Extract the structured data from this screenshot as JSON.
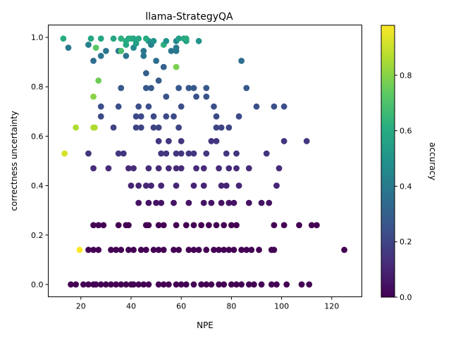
{
  "chart_data": {
    "type": "scatter",
    "title": "llama-StrategyQA",
    "xlabel": "NPE",
    "ylabel": "correctness uncertainty",
    "colorbar_label": "accuracy",
    "xlim": [
      7,
      132
    ],
    "ylim": [
      -0.05,
      1.05
    ],
    "clim": [
      0,
      0.98
    ],
    "xticks": [
      "20",
      "40",
      "60",
      "80",
      "100",
      "120"
    ],
    "yticks": [
      "0.0",
      "0.2",
      "0.4",
      "0.6",
      "0.8",
      "1.0"
    ],
    "cticks": [
      "0.0",
      "0.2",
      "0.4",
      "0.6",
      "0.8"
    ],
    "colormap": "viridis",
    "grid": false,
    "points": [
      {
        "x": 16,
        "y": 0.0,
        "c": 0.0
      },
      {
        "x": 18,
        "y": 0.0,
        "c": 0.0
      },
      {
        "x": 21,
        "y": 0.0,
        "c": 0.0
      },
      {
        "x": 23,
        "y": 0.0,
        "c": 0.0
      },
      {
        "x": 25,
        "y": 0.0,
        "c": 0.0
      },
      {
        "x": 26,
        "y": 0.0,
        "c": 0.0
      },
      {
        "x": 28,
        "y": 0.0,
        "c": 0.0
      },
      {
        "x": 30,
        "y": 0.0,
        "c": 0.0
      },
      {
        "x": 32,
        "y": 0.0,
        "c": 0.0
      },
      {
        "x": 34,
        "y": 0.0,
        "c": 0.0
      },
      {
        "x": 36,
        "y": 0.0,
        "c": 0.0
      },
      {
        "x": 38,
        "y": 0.0,
        "c": 0.0
      },
      {
        "x": 40,
        "y": 0.0,
        "c": 0.0
      },
      {
        "x": 41,
        "y": 0.0,
        "c": 0.0
      },
      {
        "x": 43,
        "y": 0.0,
        "c": 0.0
      },
      {
        "x": 45,
        "y": 0.0,
        "c": 0.0
      },
      {
        "x": 47,
        "y": 0.0,
        "c": 0.0
      },
      {
        "x": 51,
        "y": 0.0,
        "c": 0.0
      },
      {
        "x": 53,
        "y": 0.0,
        "c": 0.0
      },
      {
        "x": 55,
        "y": 0.0,
        "c": 0.0
      },
      {
        "x": 58,
        "y": 0.0,
        "c": 0.0
      },
      {
        "x": 60,
        "y": 0.0,
        "c": 0.0
      },
      {
        "x": 62,
        "y": 0.0,
        "c": 0.0
      },
      {
        "x": 65,
        "y": 0.0,
        "c": 0.0
      },
      {
        "x": 68,
        "y": 0.0,
        "c": 0.0
      },
      {
        "x": 70,
        "y": 0.0,
        "c": 0.0
      },
      {
        "x": 72,
        "y": 0.0,
        "c": 0.0
      },
      {
        "x": 75,
        "y": 0.0,
        "c": 0.0
      },
      {
        "x": 77,
        "y": 0.0,
        "c": 0.0
      },
      {
        "x": 80,
        "y": 0.0,
        "c": 0.0
      },
      {
        "x": 82,
        "y": 0.0,
        "c": 0.0
      },
      {
        "x": 84,
        "y": 0.0,
        "c": 0.0
      },
      {
        "x": 87,
        "y": 0.0,
        "c": 0.0
      },
      {
        "x": 89,
        "y": 0.0,
        "c": 0.0
      },
      {
        "x": 92,
        "y": 0.0,
        "c": 0.0
      },
      {
        "x": 96,
        "y": 0.0,
        "c": 0.0
      },
      {
        "x": 98,
        "y": 0.0,
        "c": 0.0
      },
      {
        "x": 102,
        "y": 0.0,
        "c": 0.0
      },
      {
        "x": 108,
        "y": 0.0,
        "c": 0.0
      },
      {
        "x": 111,
        "y": 0.0,
        "c": 0.0
      },
      {
        "x": 19.5,
        "y": 0.14,
        "c": 0.98
      },
      {
        "x": 23,
        "y": 0.14,
        "c": 0.0
      },
      {
        "x": 25,
        "y": 0.14,
        "c": 0.0
      },
      {
        "x": 27,
        "y": 0.14,
        "c": 0.0
      },
      {
        "x": 32,
        "y": 0.14,
        "c": 0.0
      },
      {
        "x": 34,
        "y": 0.14,
        "c": 0.0
      },
      {
        "x": 36,
        "y": 0.14,
        "c": 0.0
      },
      {
        "x": 39,
        "y": 0.14,
        "c": 0.0
      },
      {
        "x": 41,
        "y": 0.14,
        "c": 0.0
      },
      {
        "x": 44,
        "y": 0.14,
        "c": 0.0
      },
      {
        "x": 46,
        "y": 0.14,
        "c": 0.0
      },
      {
        "x": 49,
        "y": 0.14,
        "c": 0.0
      },
      {
        "x": 51,
        "y": 0.14,
        "c": 0.0
      },
      {
        "x": 53,
        "y": 0.14,
        "c": 0.0
      },
      {
        "x": 57,
        "y": 0.14,
        "c": 0.0
      },
      {
        "x": 59,
        "y": 0.14,
        "c": 0.0
      },
      {
        "x": 63,
        "y": 0.14,
        "c": 0.0
      },
      {
        "x": 65,
        "y": 0.14,
        "c": 0.0
      },
      {
        "x": 67,
        "y": 0.14,
        "c": 0.0
      },
      {
        "x": 70,
        "y": 0.14,
        "c": 0.0
      },
      {
        "x": 73,
        "y": 0.14,
        "c": 0.0
      },
      {
        "x": 75,
        "y": 0.14,
        "c": 0.0
      },
      {
        "x": 77,
        "y": 0.14,
        "c": 0.0
      },
      {
        "x": 79,
        "y": 0.14,
        "c": 0.0
      },
      {
        "x": 81,
        "y": 0.14,
        "c": 0.0
      },
      {
        "x": 84,
        "y": 0.14,
        "c": 0.0
      },
      {
        "x": 86,
        "y": 0.14,
        "c": 0.0
      },
      {
        "x": 88,
        "y": 0.14,
        "c": 0.0
      },
      {
        "x": 91,
        "y": 0.14,
        "c": 0.0
      },
      {
        "x": 96,
        "y": 0.14,
        "c": 0.0
      },
      {
        "x": 97,
        "y": 0.14,
        "c": 0.0
      },
      {
        "x": 125,
        "y": 0.14,
        "c": 0.0
      },
      {
        "x": 25,
        "y": 0.24,
        "c": 0.0
      },
      {
        "x": 27,
        "y": 0.24,
        "c": 0.0
      },
      {
        "x": 29,
        "y": 0.24,
        "c": 0.0
      },
      {
        "x": 35,
        "y": 0.24,
        "c": 0.0
      },
      {
        "x": 38,
        "y": 0.24,
        "c": 0.0
      },
      {
        "x": 39,
        "y": 0.24,
        "c": 0.0
      },
      {
        "x": 46,
        "y": 0.24,
        "c": 0.0
      },
      {
        "x": 47,
        "y": 0.24,
        "c": 0.0
      },
      {
        "x": 51,
        "y": 0.24,
        "c": 0.0
      },
      {
        "x": 53,
        "y": 0.24,
        "c": 0.0
      },
      {
        "x": 58,
        "y": 0.24,
        "c": 0.0
      },
      {
        "x": 62,
        "y": 0.24,
        "c": 0.0
      },
      {
        "x": 65,
        "y": 0.24,
        "c": 0.0
      },
      {
        "x": 68,
        "y": 0.24,
        "c": 0.0
      },
      {
        "x": 71,
        "y": 0.24,
        "c": 0.0
      },
      {
        "x": 74,
        "y": 0.24,
        "c": 0.0
      },
      {
        "x": 77,
        "y": 0.24,
        "c": 0.0
      },
      {
        "x": 80,
        "y": 0.24,
        "c": 0.0
      },
      {
        "x": 82,
        "y": 0.24,
        "c": 0.0
      },
      {
        "x": 97,
        "y": 0.24,
        "c": 0.0
      },
      {
        "x": 101,
        "y": 0.24,
        "c": 0.0
      },
      {
        "x": 107,
        "y": 0.24,
        "c": 0.0
      },
      {
        "x": 112,
        "y": 0.24,
        "c": 0.0
      },
      {
        "x": 114,
        "y": 0.24,
        "c": 0.0
      },
      {
        "x": 43,
        "y": 0.33,
        "c": 0.05
      },
      {
        "x": 47,
        "y": 0.33,
        "c": 0.05
      },
      {
        "x": 50,
        "y": 0.33,
        "c": 0.05
      },
      {
        "x": 52,
        "y": 0.33,
        "c": 0.05
      },
      {
        "x": 57,
        "y": 0.33,
        "c": 0.05
      },
      {
        "x": 63,
        "y": 0.33,
        "c": 0.05
      },
      {
        "x": 69,
        "y": 0.33,
        "c": 0.05
      },
      {
        "x": 72,
        "y": 0.33,
        "c": 0.05
      },
      {
        "x": 76,
        "y": 0.33,
        "c": 0.05
      },
      {
        "x": 79,
        "y": 0.33,
        "c": 0.05
      },
      {
        "x": 81,
        "y": 0.33,
        "c": 0.05
      },
      {
        "x": 87,
        "y": 0.33,
        "c": 0.05
      },
      {
        "x": 92,
        "y": 0.33,
        "c": 0.05
      },
      {
        "x": 95,
        "y": 0.33,
        "c": 0.05
      },
      {
        "x": 40,
        "y": 0.4,
        "c": 0.1
      },
      {
        "x": 43,
        "y": 0.4,
        "c": 0.1
      },
      {
        "x": 46,
        "y": 0.4,
        "c": 0.1
      },
      {
        "x": 48,
        "y": 0.4,
        "c": 0.1
      },
      {
        "x": 52,
        "y": 0.4,
        "c": 0.1
      },
      {
        "x": 58,
        "y": 0.4,
        "c": 0.1
      },
      {
        "x": 65,
        "y": 0.4,
        "c": 0.1
      },
      {
        "x": 69,
        "y": 0.4,
        "c": 0.1
      },
      {
        "x": 76,
        "y": 0.4,
        "c": 0.1
      },
      {
        "x": 78,
        "y": 0.4,
        "c": 0.1
      },
      {
        "x": 83,
        "y": 0.4,
        "c": 0.1
      },
      {
        "x": 98,
        "y": 0.4,
        "c": 0.1
      },
      {
        "x": 25,
        "y": 0.47,
        "c": 0.12
      },
      {
        "x": 31,
        "y": 0.47,
        "c": 0.12
      },
      {
        "x": 39,
        "y": 0.47,
        "c": 0.12
      },
      {
        "x": 41,
        "y": 0.47,
        "c": 0.12
      },
      {
        "x": 47,
        "y": 0.47,
        "c": 0.12
      },
      {
        "x": 51,
        "y": 0.47,
        "c": 0.12
      },
      {
        "x": 55,
        "y": 0.47,
        "c": 0.12
      },
      {
        "x": 58,
        "y": 0.47,
        "c": 0.12
      },
      {
        "x": 60,
        "y": 0.47,
        "c": 0.12
      },
      {
        "x": 66,
        "y": 0.47,
        "c": 0.12
      },
      {
        "x": 69,
        "y": 0.47,
        "c": 0.12
      },
      {
        "x": 75,
        "y": 0.47,
        "c": 0.12
      },
      {
        "x": 79,
        "y": 0.47,
        "c": 0.12
      },
      {
        "x": 82,
        "y": 0.47,
        "c": 0.12
      },
      {
        "x": 87,
        "y": 0.47,
        "c": 0.12
      },
      {
        "x": 99,
        "y": 0.47,
        "c": 0.12
      },
      {
        "x": 23,
        "y": 0.53,
        "c": 0.15
      },
      {
        "x": 35,
        "y": 0.53,
        "c": 0.15
      },
      {
        "x": 37,
        "y": 0.53,
        "c": 0.15
      },
      {
        "x": 52,
        "y": 0.53,
        "c": 0.15
      },
      {
        "x": 54,
        "y": 0.53,
        "c": 0.15
      },
      {
        "x": 58,
        "y": 0.53,
        "c": 0.15
      },
      {
        "x": 60,
        "y": 0.53,
        "c": 0.15
      },
      {
        "x": 63,
        "y": 0.53,
        "c": 0.15
      },
      {
        "x": 65,
        "y": 0.53,
        "c": 0.15
      },
      {
        "x": 70,
        "y": 0.53,
        "c": 0.15
      },
      {
        "x": 78,
        "y": 0.53,
        "c": 0.15
      },
      {
        "x": 82,
        "y": 0.53,
        "c": 0.15
      },
      {
        "x": 94,
        "y": 0.53,
        "c": 0.15
      },
      {
        "x": 13.5,
        "y": 0.53,
        "c": 0.92
      },
      {
        "x": 51,
        "y": 0.58,
        "c": 0.15
      },
      {
        "x": 55,
        "y": 0.58,
        "c": 0.15
      },
      {
        "x": 60,
        "y": 0.58,
        "c": 0.15
      },
      {
        "x": 72,
        "y": 0.58,
        "c": 0.15
      },
      {
        "x": 74,
        "y": 0.58,
        "c": 0.15
      },
      {
        "x": 101,
        "y": 0.58,
        "c": 0.15
      },
      {
        "x": 110,
        "y": 0.58,
        "c": 0.15
      },
      {
        "x": 33,
        "y": 0.635,
        "c": 0.2
      },
      {
        "x": 42,
        "y": 0.635,
        "c": 0.2
      },
      {
        "x": 44,
        "y": 0.635,
        "c": 0.2
      },
      {
        "x": 49,
        "y": 0.635,
        "c": 0.2
      },
      {
        "x": 51,
        "y": 0.635,
        "c": 0.2
      },
      {
        "x": 59,
        "y": 0.635,
        "c": 0.2
      },
      {
        "x": 74,
        "y": 0.635,
        "c": 0.2
      },
      {
        "x": 76,
        "y": 0.635,
        "c": 0.2
      },
      {
        "x": 79,
        "y": 0.635,
        "c": 0.2
      },
      {
        "x": 18,
        "y": 0.635,
        "c": 0.86
      },
      {
        "x": 25,
        "y": 0.635,
        "c": 0.86
      },
      {
        "x": 25.5,
        "y": 0.635,
        "c": 0.86
      },
      {
        "x": 28,
        "y": 0.68,
        "c": 0.22
      },
      {
        "x": 42,
        "y": 0.68,
        "c": 0.22
      },
      {
        "x": 44,
        "y": 0.68,
        "c": 0.22
      },
      {
        "x": 49,
        "y": 0.68,
        "c": 0.22
      },
      {
        "x": 54,
        "y": 0.68,
        "c": 0.22
      },
      {
        "x": 57,
        "y": 0.68,
        "c": 0.22
      },
      {
        "x": 74,
        "y": 0.68,
        "c": 0.22
      },
      {
        "x": 83,
        "y": 0.68,
        "c": 0.22
      },
      {
        "x": 28,
        "y": 0.72,
        "c": 0.24
      },
      {
        "x": 35,
        "y": 0.72,
        "c": 0.24
      },
      {
        "x": 43,
        "y": 0.72,
        "c": 0.24
      },
      {
        "x": 47,
        "y": 0.72,
        "c": 0.24
      },
      {
        "x": 60,
        "y": 0.72,
        "c": 0.24
      },
      {
        "x": 73,
        "y": 0.72,
        "c": 0.24
      },
      {
        "x": 90,
        "y": 0.72,
        "c": 0.24
      },
      {
        "x": 97,
        "y": 0.72,
        "c": 0.24
      },
      {
        "x": 101,
        "y": 0.72,
        "c": 0.24
      },
      {
        "x": 54,
        "y": 0.76,
        "c": 0.25
      },
      {
        "x": 66,
        "y": 0.76,
        "c": 0.25
      },
      {
        "x": 70,
        "y": 0.76,
        "c": 0.25
      },
      {
        "x": 25,
        "y": 0.76,
        "c": 0.8
      },
      {
        "x": 36,
        "y": 0.795,
        "c": 0.27
      },
      {
        "x": 46,
        "y": 0.795,
        "c": 0.27
      },
      {
        "x": 48,
        "y": 0.795,
        "c": 0.27
      },
      {
        "x": 59,
        "y": 0.795,
        "c": 0.27
      },
      {
        "x": 63,
        "y": 0.795,
        "c": 0.27
      },
      {
        "x": 65,
        "y": 0.795,
        "c": 0.27
      },
      {
        "x": 70,
        "y": 0.795,
        "c": 0.27
      },
      {
        "x": 86,
        "y": 0.795,
        "c": 0.27
      },
      {
        "x": 51,
        "y": 0.825,
        "c": 0.28
      },
      {
        "x": 27,
        "y": 0.825,
        "c": 0.76
      },
      {
        "x": 46,
        "y": 0.855,
        "c": 0.3
      },
      {
        "x": 53,
        "y": 0.88,
        "c": 0.3
      },
      {
        "x": 58,
        "y": 0.88,
        "c": 0.78
      },
      {
        "x": 25,
        "y": 0.905,
        "c": 0.35
      },
      {
        "x": 50,
        "y": 0.905,
        "c": 0.35
      },
      {
        "x": 84,
        "y": 0.905,
        "c": 0.35
      },
      {
        "x": 28,
        "y": 0.925,
        "c": 0.38
      },
      {
        "x": 38,
        "y": 0.925,
        "c": 0.38
      },
      {
        "x": 45,
        "y": 0.925,
        "c": 0.38
      },
      {
        "x": 30,
        "y": 0.945,
        "c": 0.38
      },
      {
        "x": 35,
        "y": 0.945,
        "c": 0.38
      },
      {
        "x": 45,
        "y": 0.945,
        "c": 0.38
      },
      {
        "x": 56,
        "y": 0.945,
        "c": 0.38
      },
      {
        "x": 58,
        "y": 0.945,
        "c": 0.38
      },
      {
        "x": 36,
        "y": 0.945,
        "c": 0.68
      },
      {
        "x": 15,
        "y": 0.958,
        "c": 0.4
      },
      {
        "x": 26,
        "y": 0.958,
        "c": 0.72
      },
      {
        "x": 41,
        "y": 0.958,
        "c": 0.45
      },
      {
        "x": 58,
        "y": 0.958,
        "c": 0.4
      },
      {
        "x": 23,
        "y": 0.97,
        "c": 0.42
      },
      {
        "x": 38,
        "y": 0.97,
        "c": 0.58
      },
      {
        "x": 48,
        "y": 0.97,
        "c": 0.42
      },
      {
        "x": 53,
        "y": 0.97,
        "c": 0.62
      },
      {
        "x": 42,
        "y": 0.975,
        "c": 0.55
      },
      {
        "x": 38,
        "y": 0.985,
        "c": 0.6
      },
      {
        "x": 47,
        "y": 0.985,
        "c": 0.48
      },
      {
        "x": 49,
        "y": 0.985,
        "c": 0.5
      },
      {
        "x": 54,
        "y": 0.985,
        "c": 0.5
      },
      {
        "x": 58,
        "y": 0.985,
        "c": 0.45
      },
      {
        "x": 62,
        "y": 0.985,
        "c": 0.55
      },
      {
        "x": 67,
        "y": 0.985,
        "c": 0.5
      },
      {
        "x": 13,
        "y": 0.995,
        "c": 0.6
      },
      {
        "x": 24,
        "y": 0.995,
        "c": 0.58
      },
      {
        "x": 28,
        "y": 0.995,
        "c": 0.58
      },
      {
        "x": 33,
        "y": 0.995,
        "c": 0.58
      },
      {
        "x": 36,
        "y": 0.995,
        "c": 0.62
      },
      {
        "x": 39,
        "y": 0.995,
        "c": 0.6
      },
      {
        "x": 40,
        "y": 0.995,
        "c": 0.62
      },
      {
        "x": 41,
        "y": 0.995,
        "c": 0.58
      },
      {
        "x": 43,
        "y": 0.995,
        "c": 0.58
      },
      {
        "x": 46,
        "y": 0.995,
        "c": 0.6
      },
      {
        "x": 59,
        "y": 0.995,
        "c": 0.55
      },
      {
        "x": 61,
        "y": 0.995,
        "c": 0.58
      },
      {
        "x": 62,
        "y": 0.995,
        "c": 0.6
      }
    ]
  }
}
